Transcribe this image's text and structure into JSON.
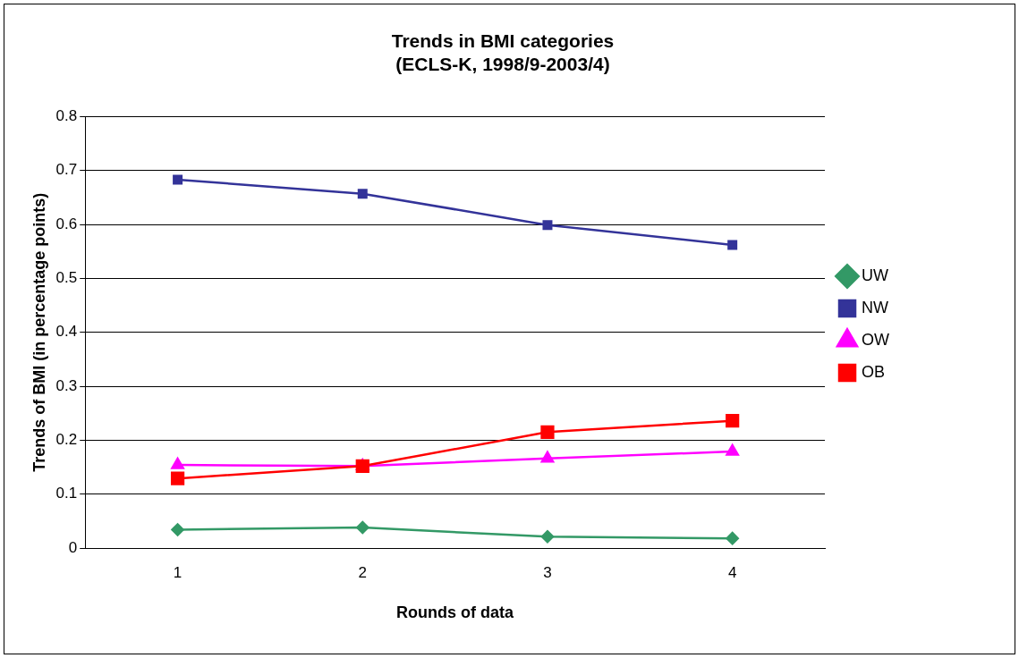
{
  "chart_data": {
    "type": "line",
    "title": "Trends in BMI categories\n(ECLS-K, 1998/9-2003/4)",
    "xlabel": "Rounds of data",
    "ylabel": "Trends of BMI (in percentage points)",
    "categories": [
      "1",
      "2",
      "3",
      "4"
    ],
    "series": [
      {
        "name": "UW",
        "color": "#339966",
        "marker": "diamond",
        "values": [
          0.034,
          0.038,
          0.021,
          0.018
        ]
      },
      {
        "name": "NW",
        "color": "#333399",
        "marker": "square",
        "values": [
          0.683,
          0.657,
          0.599,
          0.562
        ]
      },
      {
        "name": "OW",
        "color": "#ff00ff",
        "marker": "triangle",
        "values": [
          0.154,
          0.152,
          0.166,
          0.179
        ]
      },
      {
        "name": "OB",
        "color": "#ff0000",
        "marker": "square",
        "values": [
          0.129,
          0.152,
          0.215,
          0.236
        ]
      }
    ],
    "ylim": [
      0,
      0.8
    ],
    "yticks": [
      0,
      0.1,
      0.2,
      0.3,
      0.4,
      0.5,
      0.6,
      0.7,
      0.8
    ],
    "grid": "y",
    "legend": "right",
    "line_style": "solid"
  }
}
